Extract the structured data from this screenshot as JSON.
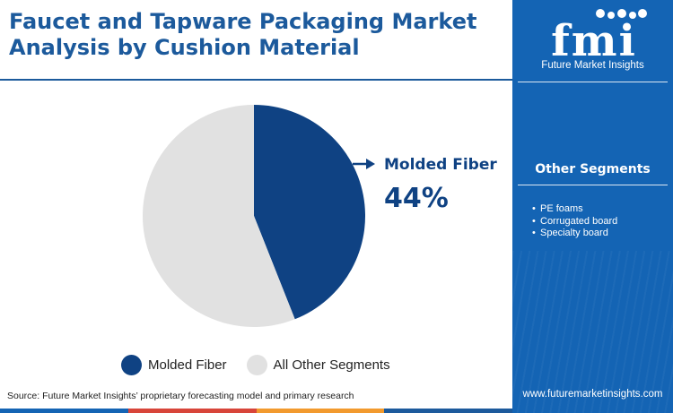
{
  "header": {
    "title": "Faucet and Tapware Packaging Market Analysis by Cushion Material"
  },
  "chart_data": {
    "type": "pie",
    "categories": [
      "Molded Fiber",
      "All Other Segments"
    ],
    "values": [
      44,
      56
    ],
    "colors": [
      "#0f4283",
      "#e1e1e1"
    ],
    "legend_position": "bottom",
    "callout": {
      "label": "Molded Fiber",
      "value": "44%"
    }
  },
  "legend": {
    "items": [
      {
        "label": "Molded Fiber",
        "color": "#0f4283"
      },
      {
        "label": "All Other Segments",
        "color": "#e1e1e1"
      }
    ]
  },
  "source": "Source: Future Market Insights’ proprietary forecasting model and primary research",
  "sidebar": {
    "logo_text": "fmi",
    "logo_caption": "Future Market Insights",
    "other_segments_title": "Other Segments",
    "segments": [
      "PE foams",
      "Corrugated board",
      "Specialty board"
    ],
    "website": "www.futuremarketinsights.com"
  },
  "colors": {
    "brand_blue": "#1464b4",
    "title_blue": "#1c5a9c",
    "dark_blue": "#0f4283",
    "bottom_bar": [
      "#1464b4",
      "#d8453a",
      "#f29a2e",
      "#1c5a9c"
    ]
  }
}
